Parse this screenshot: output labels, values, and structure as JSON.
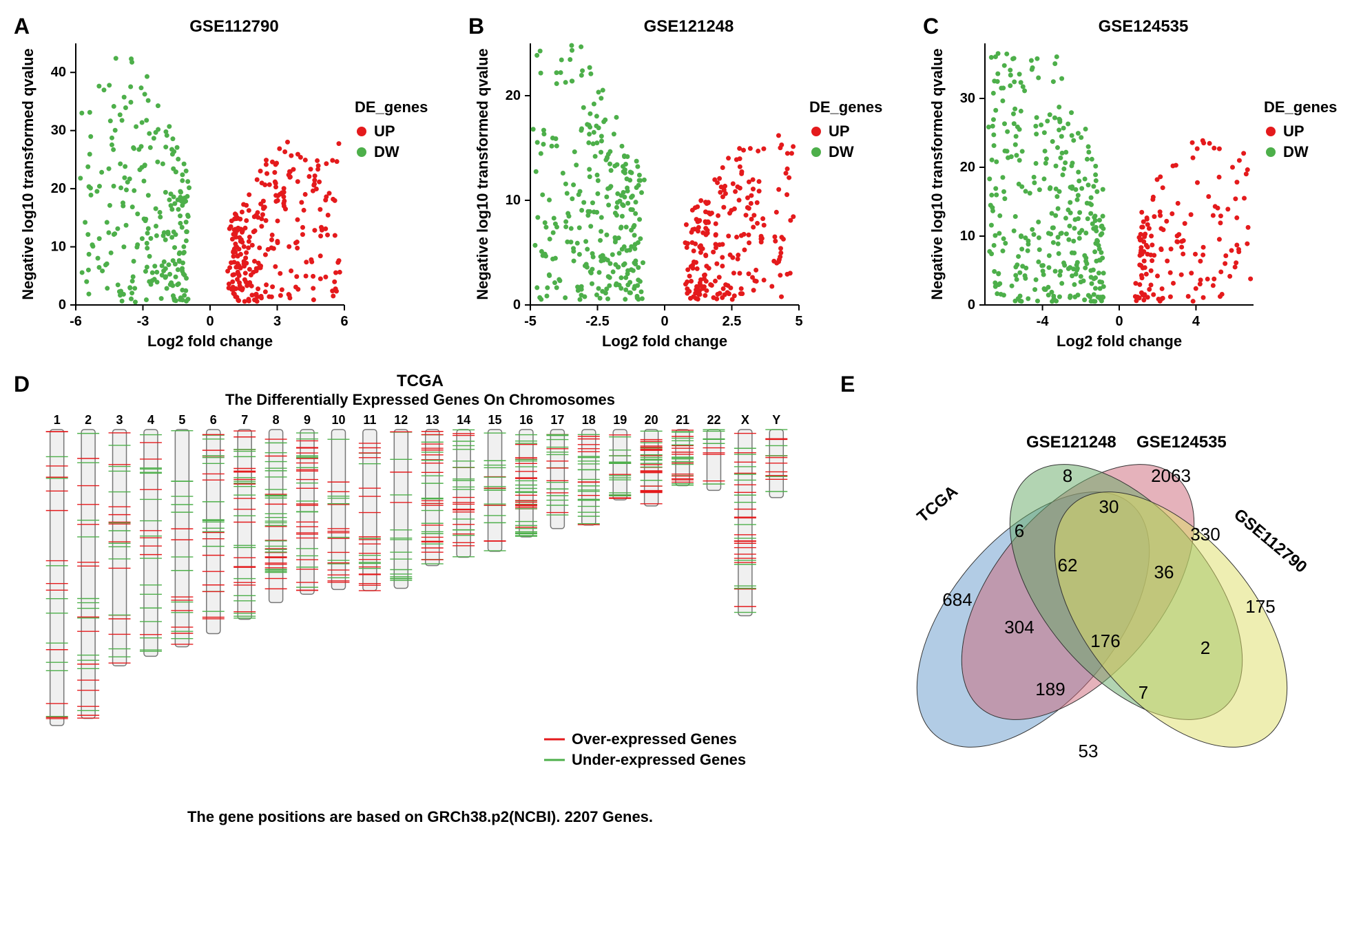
{
  "panels": {
    "A": {
      "label": "A",
      "title": "GSE112790"
    },
    "B": {
      "label": "B",
      "title": "GSE121248"
    },
    "C": {
      "label": "C",
      "title": "GSE124535"
    },
    "D": {
      "label": "D",
      "title": "TCGA",
      "subtitle": "The Differentially Expressed Genes On Chromosomes",
      "footer": "The gene positions are based on GRCh38.p2(NCBI). 2207 Genes."
    },
    "E": {
      "label": "E"
    }
  },
  "volcano_common": {
    "xlabel": "Log2 fold change",
    "ylabel": "Negative log10 transformed qvalue",
    "legend_title": "DE_genes",
    "legend_up": "UP",
    "legend_dw": "DW",
    "up_color": "#e41a1c",
    "dw_color": "#4daf4a",
    "marker_size": 3.5,
    "background_color": "#ffffff",
    "axis_color": "#000000",
    "label_fontsize": 22
  },
  "volcano_A": {
    "xlim": [
      -6,
      6
    ],
    "xticks": [
      -6,
      -3,
      0,
      3,
      6
    ],
    "ylim": [
      0,
      45
    ],
    "yticks": [
      0,
      10,
      20,
      30,
      40
    ],
    "n_up": 260,
    "n_dw": 240
  },
  "volcano_B": {
    "xlim": [
      -5,
      5
    ],
    "xticks": [
      -5.0,
      -2.5,
      0.0,
      2.5,
      5.0
    ],
    "ylim": [
      0,
      25
    ],
    "yticks": [
      0,
      10,
      20
    ],
    "n_up": 220,
    "n_dw": 280
  },
  "volcano_C": {
    "xlim": [
      -7,
      7
    ],
    "xticks": [
      -4,
      0,
      4
    ],
    "ylim": [
      0,
      38
    ],
    "yticks": [
      0,
      10,
      20,
      30
    ],
    "n_up": 150,
    "n_dw": 330
  },
  "chromosomes": {
    "labels": [
      "1",
      "2",
      "3",
      "4",
      "5",
      "6",
      "7",
      "8",
      "9",
      "10",
      "11",
      "12",
      "13",
      "14",
      "15",
      "16",
      "17",
      "18",
      "19",
      "20",
      "21",
      "22",
      "X",
      "Y"
    ],
    "lengths": [
      248,
      242,
      198,
      190,
      182,
      171,
      159,
      145,
      138,
      134,
      135,
      133,
      114,
      107,
      102,
      90,
      83,
      80,
      59,
      64,
      47,
      51,
      156,
      57
    ],
    "over_color": "#e41a1c",
    "under_color": "#4daf4a",
    "bar_fill": "#f0f0f0",
    "bar_stroke": "#777777",
    "legend_over": "Over-expressed Genes",
    "legend_under": "Under-expressed Genes"
  },
  "venn": {
    "sets": {
      "TCGA": {
        "color": "#6699cc",
        "label": "TCGA"
      },
      "GSE121248": {
        "color": "#cc6677",
        "label": "GSE121248"
      },
      "GSE124535": {
        "color": "#66aa66",
        "label": "GSE124535"
      },
      "GSE112790": {
        "color": "#dddd66",
        "label": "GSE112790"
      }
    },
    "regions": {
      "TCGA_only": 684,
      "GSE121248_only": 8,
      "GSE124535_only": 2063,
      "GSE112790_only": 175,
      "TCGA_GSE121248": 6,
      "GSE121248_GSE124535": 30,
      "GSE124535_GSE112790": 330,
      "TCGA_GSE112790": 53,
      "TCGA_GSE124535": 304,
      "GSE121248_GSE112790": 2,
      "TCGA_GSE121248_GSE124535": 62,
      "GSE121248_GSE124535_GSE112790": 36,
      "TCGA_GSE124535_GSE112790": 189,
      "TCGA_GSE121248_GSE112790": 7,
      "all_four": 176
    },
    "value_fontsize": 26,
    "label_fontsize": 24
  }
}
